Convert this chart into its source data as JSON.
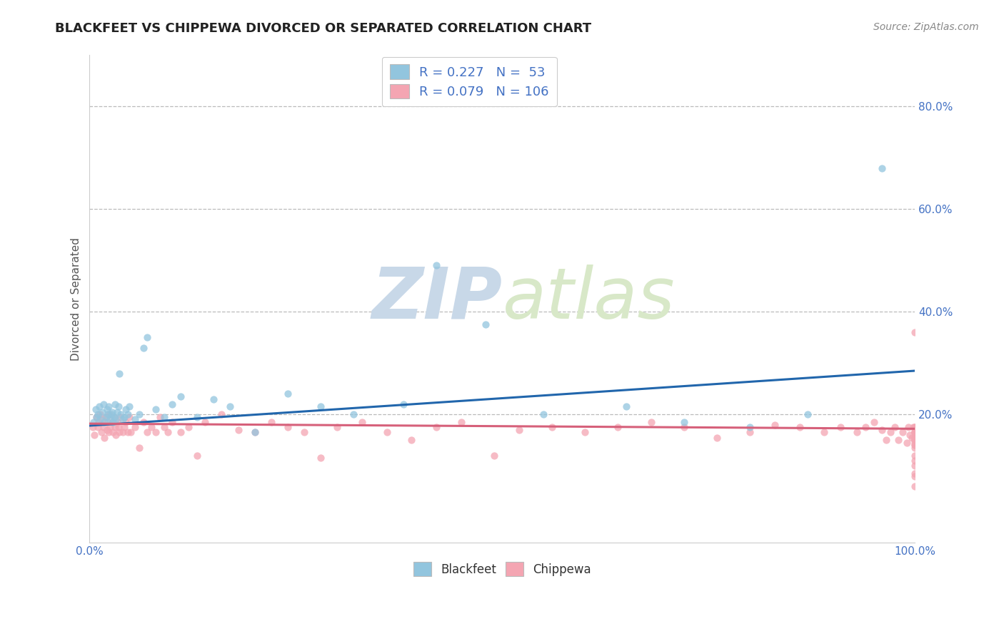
{
  "title": "BLACKFEET VS CHIPPEWA DIVORCED OR SEPARATED CORRELATION CHART",
  "source_text": "Source: ZipAtlas.com",
  "ylabel": "Divorced or Separated",
  "xlim": [
    0.0,
    1.0
  ],
  "ylim": [
    -0.05,
    0.9
  ],
  "ytick_vals": [
    0.2,
    0.4,
    0.6,
    0.8
  ],
  "ytick_labels": [
    "20.0%",
    "40.0%",
    "60.0%",
    "80.0%"
  ],
  "xtick_vals": [
    0.0,
    1.0
  ],
  "xtick_labels": [
    "0.0%",
    "100.0%"
  ],
  "blue_color": "#92c5de",
  "pink_color": "#f4a5b2",
  "line_blue": "#2166ac",
  "line_pink": "#d6607a",
  "grid_color": "#bbbbbb",
  "background_color": "#ffffff",
  "title_color": "#222222",
  "axis_label_color": "#555555",
  "tick_color": "#4472c4",
  "watermark_color": "#e0e8f0",
  "blue_line_x0": 0.0,
  "blue_line_y0": 0.178,
  "blue_line_x1": 1.0,
  "blue_line_y1": 0.285,
  "pink_line_x0": 0.0,
  "pink_line_y0": 0.182,
  "pink_line_x1": 1.0,
  "pink_line_y1": 0.172,
  "blue_scatter_x": [
    0.005,
    0.007,
    0.008,
    0.01,
    0.012,
    0.013,
    0.015,
    0.017,
    0.018,
    0.02,
    0.021,
    0.022,
    0.023,
    0.025,
    0.026,
    0.027,
    0.028,
    0.03,
    0.031,
    0.032,
    0.033,
    0.035,
    0.036,
    0.038,
    0.04,
    0.042,
    0.044,
    0.046,
    0.048,
    0.055,
    0.06,
    0.065,
    0.07,
    0.08,
    0.09,
    0.1,
    0.11,
    0.13,
    0.15,
    0.17,
    0.2,
    0.24,
    0.28,
    0.32,
    0.38,
    0.42,
    0.48,
    0.55,
    0.65,
    0.72,
    0.8,
    0.87,
    0.96
  ],
  "blue_scatter_y": [
    0.185,
    0.21,
    0.195,
    0.2,
    0.215,
    0.19,
    0.205,
    0.22,
    0.185,
    0.195,
    0.21,
    0.2,
    0.215,
    0.19,
    0.2,
    0.205,
    0.185,
    0.195,
    0.22,
    0.19,
    0.205,
    0.215,
    0.28,
    0.2,
    0.19,
    0.195,
    0.21,
    0.2,
    0.215,
    0.19,
    0.2,
    0.33,
    0.35,
    0.21,
    0.195,
    0.22,
    0.235,
    0.195,
    0.23,
    0.215,
    0.165,
    0.24,
    0.215,
    0.2,
    0.22,
    0.49,
    0.375,
    0.2,
    0.215,
    0.185,
    0.175,
    0.2,
    0.68
  ],
  "pink_scatter_x": [
    0.004,
    0.006,
    0.008,
    0.01,
    0.011,
    0.013,
    0.014,
    0.015,
    0.017,
    0.018,
    0.02,
    0.021,
    0.022,
    0.023,
    0.024,
    0.025,
    0.027,
    0.028,
    0.03,
    0.031,
    0.032,
    0.033,
    0.035,
    0.036,
    0.038,
    0.04,
    0.042,
    0.044,
    0.046,
    0.048,
    0.05,
    0.055,
    0.06,
    0.065,
    0.07,
    0.075,
    0.08,
    0.085,
    0.09,
    0.095,
    0.1,
    0.11,
    0.12,
    0.13,
    0.14,
    0.16,
    0.18,
    0.2,
    0.22,
    0.24,
    0.26,
    0.28,
    0.3,
    0.33,
    0.36,
    0.39,
    0.42,
    0.45,
    0.49,
    0.52,
    0.56,
    0.6,
    0.64,
    0.68,
    0.72,
    0.76,
    0.8,
    0.83,
    0.86,
    0.89,
    0.91,
    0.93,
    0.94,
    0.95,
    0.96,
    0.965,
    0.97,
    0.975,
    0.98,
    0.985,
    0.99,
    0.992,
    0.994,
    0.996,
    0.998,
    1.0,
    1.0,
    1.0,
    1.0,
    1.0,
    1.0,
    1.0,
    1.0,
    1.0,
    1.0,
    1.0,
    1.0,
    1.0,
    1.0,
    1.0,
    1.0,
    1.0,
    1.0,
    1.0,
    1.0,
    1.0
  ],
  "pink_scatter_y": [
    0.175,
    0.16,
    0.195,
    0.175,
    0.185,
    0.2,
    0.165,
    0.19,
    0.175,
    0.155,
    0.195,
    0.17,
    0.185,
    0.165,
    0.2,
    0.175,
    0.185,
    0.165,
    0.195,
    0.175,
    0.16,
    0.185,
    0.175,
    0.165,
    0.195,
    0.165,
    0.175,
    0.185,
    0.165,
    0.195,
    0.165,
    0.175,
    0.135,
    0.185,
    0.165,
    0.175,
    0.165,
    0.195,
    0.175,
    0.165,
    0.185,
    0.165,
    0.175,
    0.12,
    0.185,
    0.2,
    0.17,
    0.165,
    0.185,
    0.175,
    0.165,
    0.115,
    0.175,
    0.185,
    0.165,
    0.15,
    0.175,
    0.185,
    0.12,
    0.17,
    0.175,
    0.165,
    0.175,
    0.185,
    0.175,
    0.155,
    0.165,
    0.18,
    0.175,
    0.165,
    0.175,
    0.165,
    0.175,
    0.185,
    0.17,
    0.15,
    0.165,
    0.175,
    0.15,
    0.165,
    0.145,
    0.175,
    0.16,
    0.155,
    0.175,
    0.165,
    0.15,
    0.175,
    0.165,
    0.135,
    0.175,
    0.14,
    0.165,
    0.155,
    0.15,
    0.14,
    0.36,
    0.165,
    0.145,
    0.1,
    0.12,
    0.085,
    0.155,
    0.11,
    0.08,
    0.06
  ]
}
